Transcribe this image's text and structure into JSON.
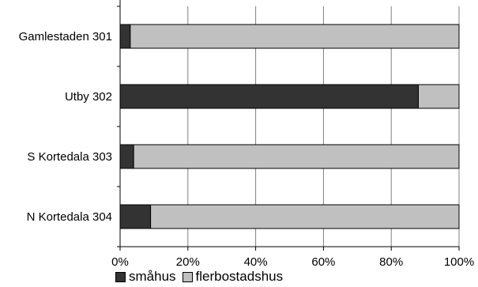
{
  "chart_data": {
    "type": "bar",
    "orientation": "horizontal",
    "stacked": true,
    "percent": true,
    "categories": [
      "Gamlestaden 301",
      "Utby 302",
      "S Kortedala 303",
      "N Kortedala 304"
    ],
    "series": [
      {
        "name": "småhus",
        "color": "#333333",
        "values": [
          3,
          88,
          4,
          9
        ]
      },
      {
        "name": "flerbostadshus",
        "color": "#c0c0c0",
        "values": [
          97,
          12,
          96,
          91
        ]
      }
    ],
    "xticks": [
      "0%",
      "20%",
      "40%",
      "60%",
      "80%",
      "100%"
    ],
    "xlim": [
      0,
      100
    ],
    "grid": true,
    "legend_position": "bottom-left"
  }
}
